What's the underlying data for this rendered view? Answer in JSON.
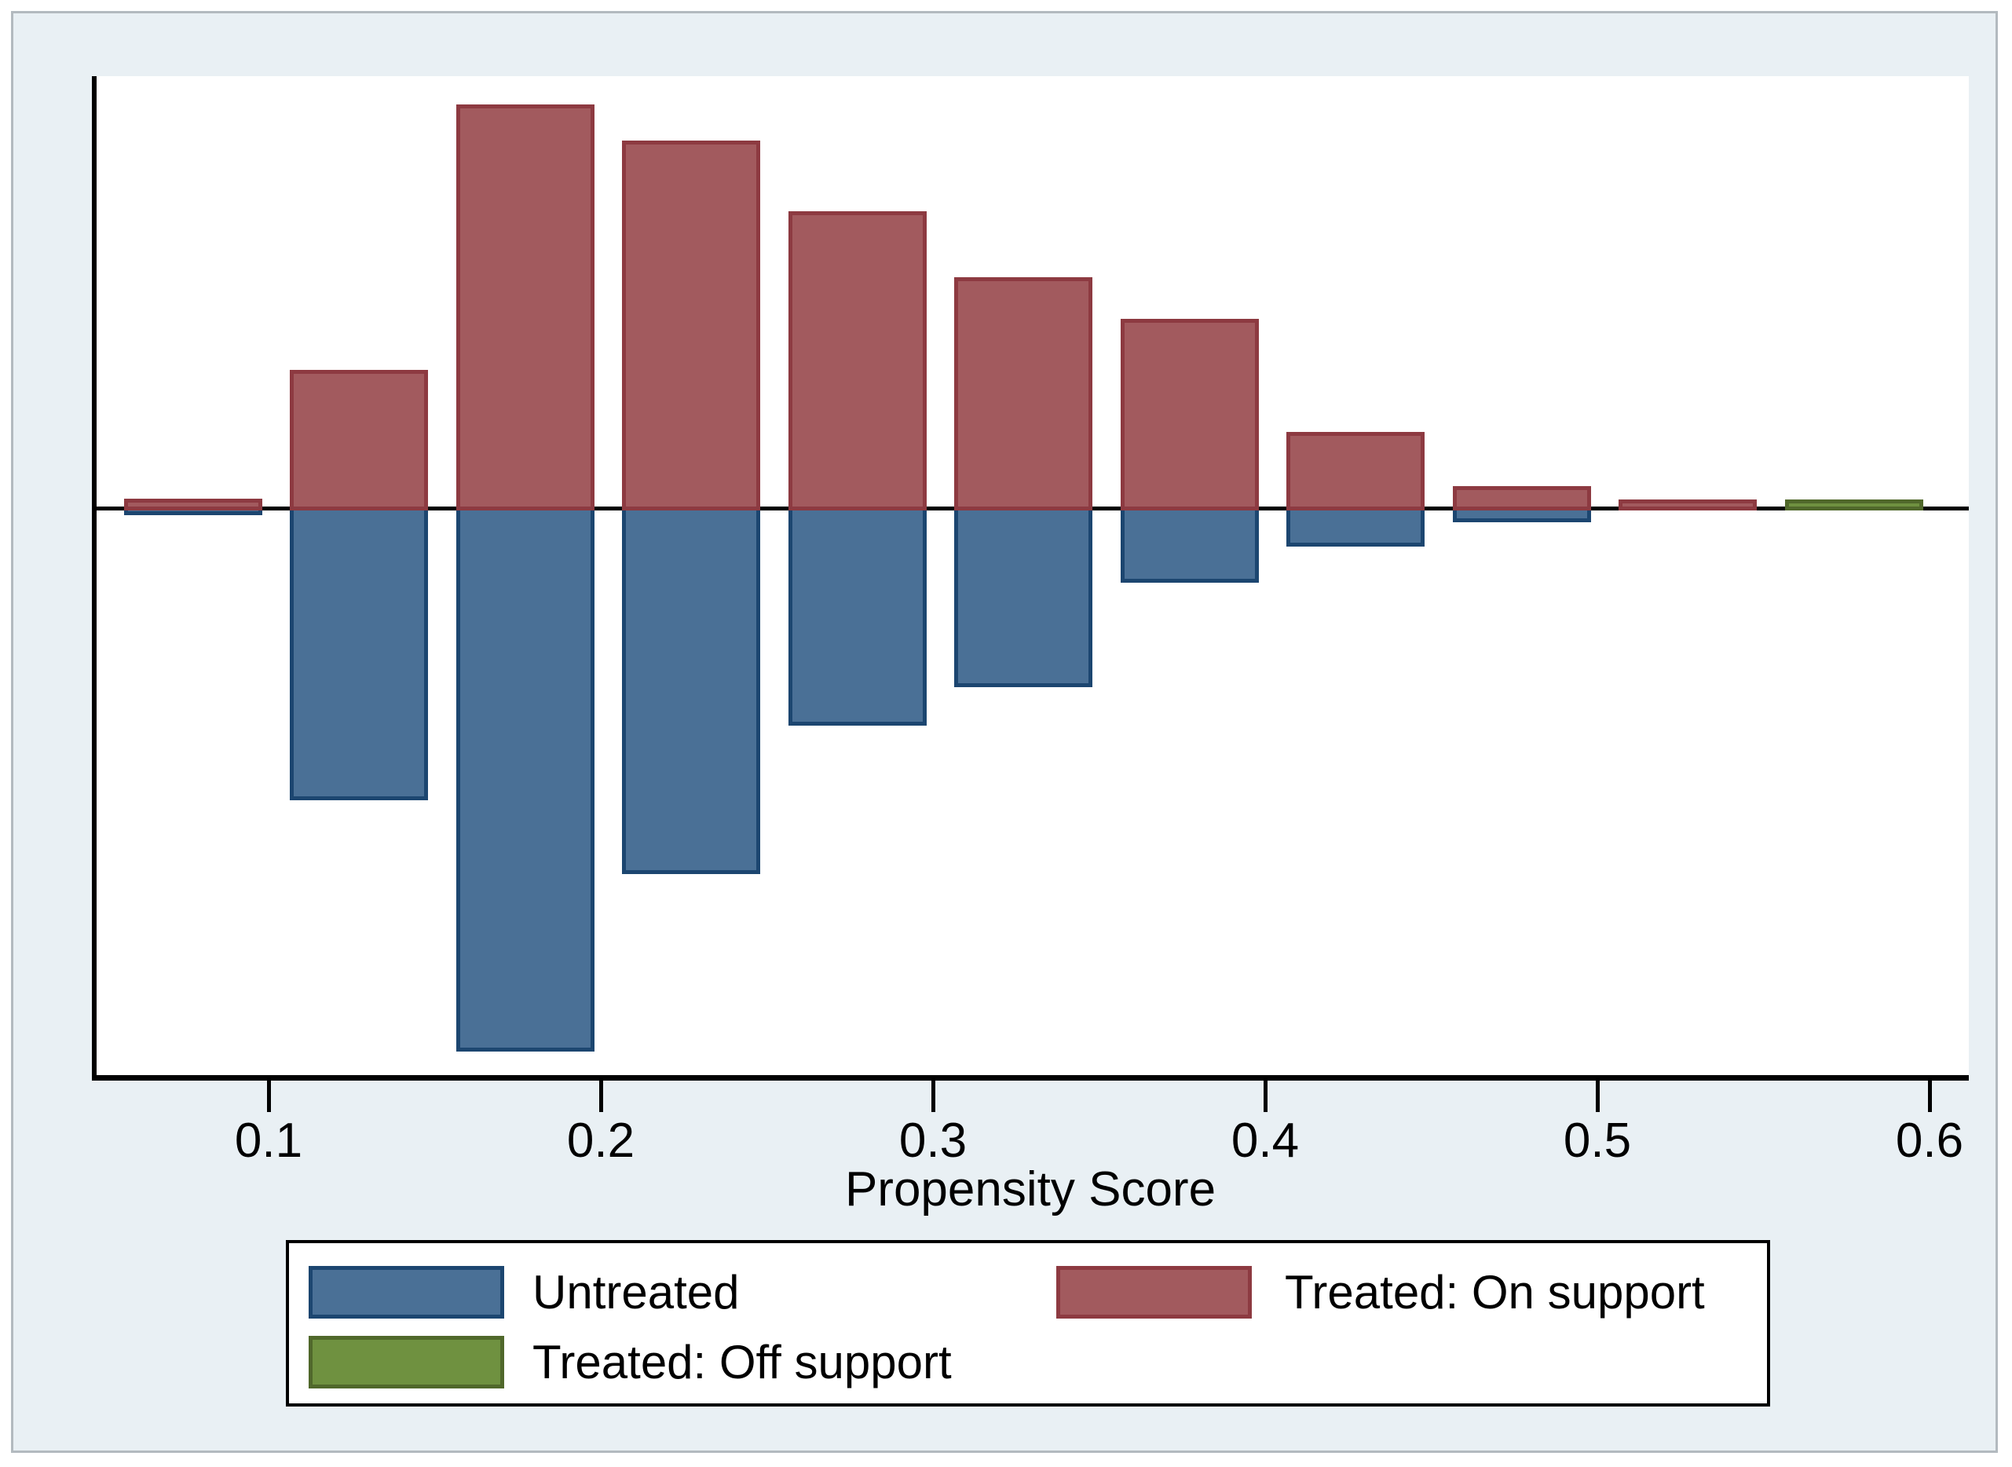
{
  "figure": {
    "kind": "propensity score overlap histogram (Stata psgraph style)",
    "background_color": "#e9f0f4",
    "plot_background": "#ffffff",
    "axis_color": "#000000"
  },
  "x_axis": {
    "title": "Propensity Score",
    "ticks": [
      {
        "value": 0.1,
        "label": "0.1"
      },
      {
        "value": 0.2,
        "label": "0.2"
      },
      {
        "value": 0.3,
        "label": "0.3"
      },
      {
        "value": 0.4,
        "label": "0.4"
      },
      {
        "value": 0.5,
        "label": "0.5"
      },
      {
        "value": 0.6,
        "label": "0.6"
      }
    ]
  },
  "legend": {
    "items": [
      {
        "key": "untreated",
        "label": "Untreated",
        "fill": "#4a7096",
        "border": "#1c4670"
      },
      {
        "key": "treated_on",
        "label": "Treated: On support",
        "fill": "#a25a5e",
        "border": "#8d3a41"
      },
      {
        "key": "treated_off",
        "label": "Treated: Off support",
        "fill": "#6f9140",
        "border": "#50682b"
      }
    ]
  },
  "chart_data": {
    "type": "bar",
    "subtype": "diverging histogram (treated above baseline, untreated mirrored below)",
    "title": "",
    "xlabel": "Propensity Score",
    "ylabel": "",
    "x_range": [
      0.05,
      0.6
    ],
    "bin_width": 0.05,
    "grid": false,
    "legend_position": "bottom",
    "units_note": "no y-axis shown; heights are relative frequencies normalized so the tallest treated bin = 1.0",
    "bins": [
      {
        "x0": 0.05,
        "x1": 0.1,
        "treated_on_support": 0.02,
        "untreated": 0.012,
        "treated_off_support": 0
      },
      {
        "x0": 0.1,
        "x1": 0.15,
        "treated_on_support": 0.34,
        "untreated": 0.72,
        "treated_off_support": 0
      },
      {
        "x0": 0.15,
        "x1": 0.2,
        "treated_on_support": 1.0,
        "untreated": 1.345,
        "treated_off_support": 0
      },
      {
        "x0": 0.2,
        "x1": 0.25,
        "treated_on_support": 0.91,
        "untreated": 0.905,
        "treated_off_support": 0
      },
      {
        "x0": 0.25,
        "x1": 0.3,
        "treated_on_support": 0.735,
        "untreated": 0.535,
        "treated_off_support": 0
      },
      {
        "x0": 0.3,
        "x1": 0.35,
        "treated_on_support": 0.57,
        "untreated": 0.44,
        "treated_off_support": 0
      },
      {
        "x0": 0.35,
        "x1": 0.4,
        "treated_on_support": 0.467,
        "untreated": 0.18,
        "treated_off_support": 0
      },
      {
        "x0": 0.4,
        "x1": 0.45,
        "treated_on_support": 0.185,
        "untreated": 0.09,
        "treated_off_support": 0
      },
      {
        "x0": 0.45,
        "x1": 0.5,
        "treated_on_support": 0.05,
        "untreated": 0.03,
        "treated_off_support": 0
      },
      {
        "x0": 0.5,
        "x1": 0.55,
        "treated_on_support": 0.018,
        "untreated": 0,
        "treated_off_support": 0
      },
      {
        "x0": 0.55,
        "x1": 0.6,
        "treated_on_support": 0,
        "untreated": 0,
        "treated_off_support": 0.018
      }
    ]
  }
}
